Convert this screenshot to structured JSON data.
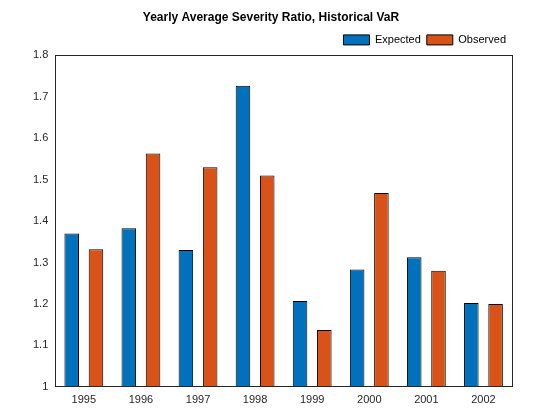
{
  "chart_data": {
    "type": "bar",
    "title": "Yearly Average Severity Ratio, Historical VaR",
    "categories": [
      "1995",
      "1996",
      "1997",
      "1998",
      "1999",
      "2000",
      "2001",
      "2002"
    ],
    "series": [
      {
        "name": "Expected",
        "color": "#0072BD",
        "values": [
          1.37,
          1.383,
          1.33,
          1.727,
          1.207,
          1.283,
          1.313,
          1.202
        ]
      },
      {
        "name": "Observed",
        "color": "#D95319",
        "values": [
          1.332,
          1.563,
          1.53,
          1.51,
          1.137,
          1.468,
          1.28,
          1.2
        ]
      }
    ],
    "ylim": [
      1,
      1.8
    ],
    "yticks": [
      1,
      1.1,
      1.2,
      1.3,
      1.4,
      1.5,
      1.6,
      1.7,
      1.8
    ],
    "grid": false,
    "legend": "northeast"
  }
}
